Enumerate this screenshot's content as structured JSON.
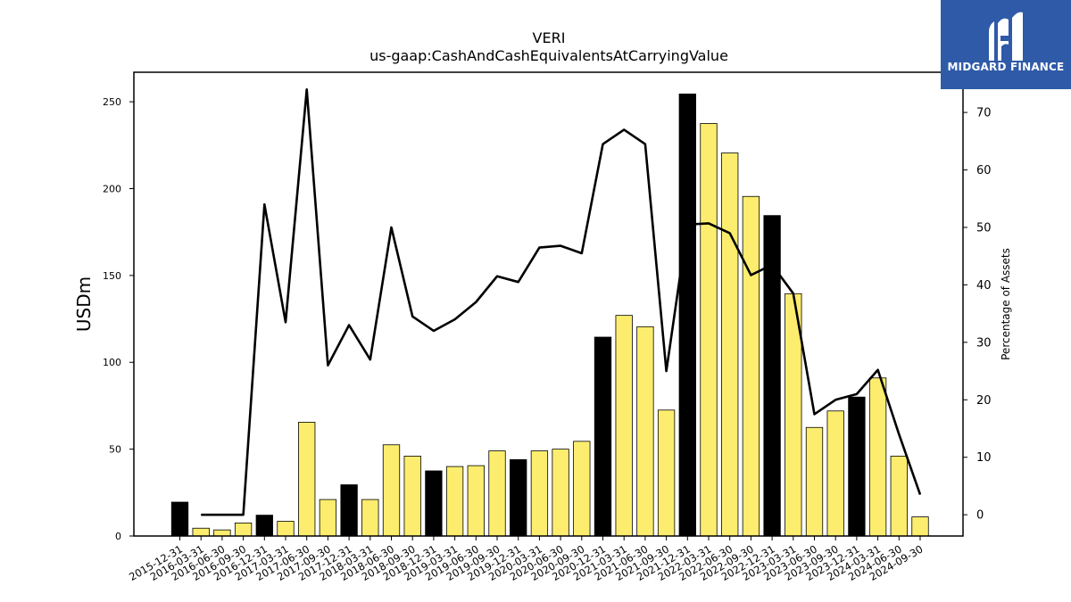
{
  "chart_data": {
    "type": "bar",
    "title": "VERI",
    "subtitle": "us-gaap:CashAndCashEquivalentsAtCarryingValue",
    "ylabel": "USDm",
    "ylabel_right": "Percentage of Assets",
    "ylim": [
      0,
      267
    ],
    "ylim_right": [
      -3.7,
      77
    ],
    "yticks": [
      0,
      50,
      100,
      150,
      200,
      250
    ],
    "yticks_right": [
      0,
      10,
      20,
      30,
      40,
      50,
      60,
      70
    ],
    "categories": [
      "2015-12-31",
      "2016-03-31",
      "2016-06-30",
      "2016-09-30",
      "2016-12-31",
      "2017-03-31",
      "2017-06-30",
      "2017-09-30",
      "2017-12-31",
      "2018-03-31",
      "2018-06-30",
      "2018-09-30",
      "2018-12-31",
      "2019-03-31",
      "2019-06-30",
      "2019-09-30",
      "2019-12-31",
      "2020-03-31",
      "2020-06-30",
      "2020-09-30",
      "2020-12-31",
      "2021-03-31",
      "2021-06-30",
      "2021-09-30",
      "2021-12-31",
      "2022-03-31",
      "2022-06-30",
      "2022-09-30",
      "2022-12-31",
      "2023-03-31",
      "2023-06-30",
      "2023-09-30",
      "2023-12-31",
      "2024-03-31",
      "2024-06-30",
      "2024-09-30"
    ],
    "series": [
      {
        "type": "bar",
        "values": [
          19.5,
          4.5,
          3.5,
          7.5,
          12.0,
          8.5,
          65.5,
          21.0,
          29.5,
          21.0,
          52.5,
          46.0,
          37.5,
          40.0,
          40.5,
          49.0,
          44.0,
          49.0,
          50.0,
          54.5,
          114.5,
          127.0,
          120.5,
          72.5,
          254.5,
          237.5,
          220.5,
          195.5,
          184.5,
          139.5,
          62.5,
          72.0,
          80.0,
          91.0,
          46.0,
          11.0
        ]
      },
      {
        "type": "line",
        "axis": "right",
        "values": [
          null,
          0.0,
          0.0,
          0.0,
          54.0,
          33.5,
          74.0,
          26.0,
          33.0,
          27.0,
          50.0,
          34.5,
          32.0,
          34.0,
          37.0,
          41.5,
          40.5,
          46.5,
          46.8,
          45.5,
          64.5,
          67.0,
          64.5,
          25.0,
          50.5,
          50.7,
          49.0,
          41.7,
          43.5,
          38.5,
          17.5,
          20.0,
          21.0,
          25.2,
          14.0,
          3.5
        ]
      }
    ],
    "highlight_categories": [
      "2015-12-31",
      "2016-12-31",
      "2017-12-31",
      "2018-12-31",
      "2019-12-31",
      "2020-12-31",
      "2021-12-31",
      "2022-12-31",
      "2023-12-31"
    ],
    "colors": {
      "bar": "#fded6e",
      "bar_highlight": "#000000",
      "bar_edge": "#000000",
      "line": "#000000"
    },
    "grid": false
  },
  "logo": {
    "text": "MIDGARD FINANCE",
    "background": "#2f5aa8"
  }
}
